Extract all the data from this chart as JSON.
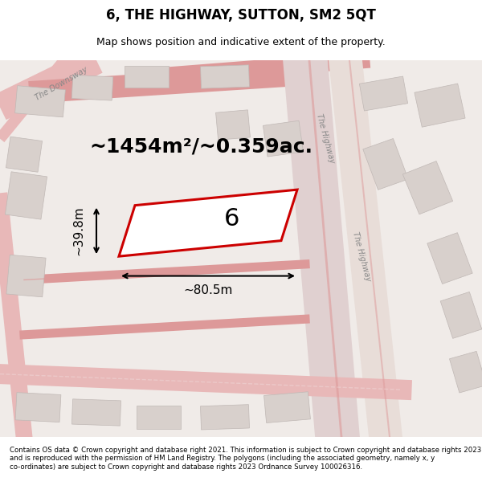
{
  "title": "6, THE HIGHWAY, SUTTON, SM2 5QT",
  "subtitle": "Map shows position and indicative extent of the property.",
  "area_label": "~1454m²/~0.359ac.",
  "number_label": "6",
  "width_label": "~80.5m",
  "height_label": "~39.8m",
  "footer_text": "Contains OS data © Crown copyright and database right 2021. This information is subject to Crown copyright and database rights 2023 and is reproduced with the permission of HM Land Registry. The polygons (including the associated geometry, namely x, y co-ordinates) are subject to Crown copyright and database rights 2023 Ordnance Survey 100026316.",
  "bg_color": "#f5f0f0",
  "map_bg": "#f0ebe8",
  "plot_color": "#cc0000",
  "road_color": "#e8b8b8",
  "building_color": "#d8d0cc",
  "road_line_color": "#dd9999",
  "figsize": [
    6.0,
    6.25
  ],
  "dpi": 100
}
